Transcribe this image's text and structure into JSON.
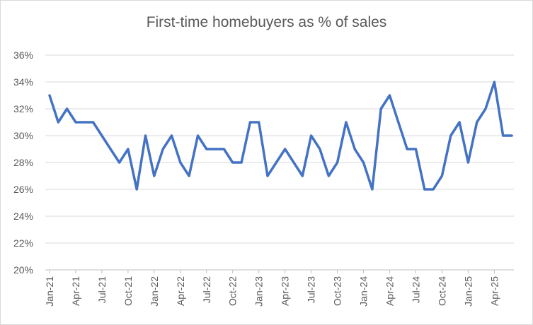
{
  "chart_data": {
    "type": "line",
    "title": "First-time homebuyers  as % of sales",
    "xlabel": "",
    "ylabel": "",
    "ylim": [
      0.2,
      0.36
    ],
    "y_ticks": [
      0.2,
      0.22,
      0.24,
      0.26,
      0.28,
      0.3,
      0.32,
      0.34,
      0.36
    ],
    "y_tick_labels": [
      "20%",
      "22%",
      "24%",
      "26%",
      "28%",
      "30%",
      "32%",
      "34%",
      "36%"
    ],
    "x_tick_labels": [
      "Jan-21",
      "Apr-21",
      "Jul-21",
      "Oct-21",
      "Jan-22",
      "Apr-22",
      "Jul-22",
      "Oct-22",
      "Jan-23",
      "Apr-23",
      "Jul-23",
      "Oct-23",
      "Jan-24",
      "Apr-24",
      "Jul-24",
      "Oct-24",
      "Jan-25",
      "Apr-25"
    ],
    "x": [
      "2021-01",
      "2021-02",
      "2021-03",
      "2021-04",
      "2021-05",
      "2021-06",
      "2021-07",
      "2021-08",
      "2021-09",
      "2021-10",
      "2021-11",
      "2021-12",
      "2022-01",
      "2022-02",
      "2022-03",
      "2022-04",
      "2022-05",
      "2022-06",
      "2022-07",
      "2022-08",
      "2022-09",
      "2022-10",
      "2022-11",
      "2022-12",
      "2023-01",
      "2023-02",
      "2023-03",
      "2023-04",
      "2023-05",
      "2023-06",
      "2023-07",
      "2023-08",
      "2023-09",
      "2023-10",
      "2023-11",
      "2023-12",
      "2024-01",
      "2024-02",
      "2024-03",
      "2024-04",
      "2024-05",
      "2024-06",
      "2024-07",
      "2024-08",
      "2024-09",
      "2024-10",
      "2024-11",
      "2024-12",
      "2025-01",
      "2025-02",
      "2025-03",
      "2025-04",
      "2025-05",
      "2025-06"
    ],
    "series": [
      {
        "name": "",
        "color": "#4472c4",
        "values": [
          0.33,
          0.31,
          0.32,
          0.31,
          0.31,
          0.31,
          0.3,
          0.29,
          0.28,
          0.29,
          0.26,
          0.3,
          0.27,
          0.29,
          0.3,
          0.28,
          0.27,
          0.3,
          0.29,
          0.29,
          0.29,
          0.28,
          0.28,
          0.31,
          0.31,
          0.27,
          0.28,
          0.29,
          0.28,
          0.27,
          0.3,
          0.29,
          0.27,
          0.28,
          0.31,
          0.29,
          0.28,
          0.26,
          0.32,
          0.33,
          0.31,
          0.29,
          0.29,
          0.26,
          0.26,
          0.27,
          0.3,
          0.31,
          0.28,
          0.31,
          0.32,
          0.34,
          0.3,
          0.3
        ]
      }
    ],
    "grid": true,
    "legend": "none"
  }
}
